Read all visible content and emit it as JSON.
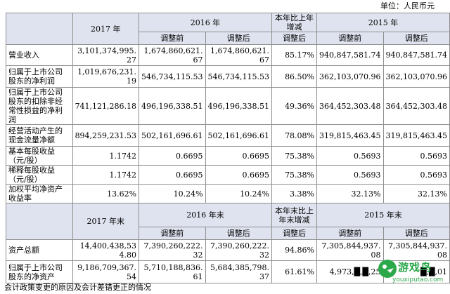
{
  "unit_label": "单位：人民币元",
  "header1": {
    "y2017": "2017 年",
    "y2016": "2016 年",
    "change": "本年比上年增减",
    "y2015": "2015 年",
    "before": "调整前",
    "after": "调整后"
  },
  "rows1": [
    {
      "label": "营业收入",
      "v2017": "3,101,374,995.27",
      "b2016": "1,674,860,621.67",
      "a2016": "1,674,860,621.67",
      "change": "85.17%",
      "b2015": "940,847,581.74",
      "a2015": "940,847,581.74"
    },
    {
      "label": "归属于上市公司股东的净利润",
      "v2017": "1,019,676,231.19",
      "b2016": "546,734,115.53",
      "a2016": "546,734,115.53",
      "change": "86.50%",
      "b2015": "362,103,070.96",
      "a2015": "362,103,070.96"
    },
    {
      "label": "归属于上市公司股东的扣除非经常性损益的净利润",
      "v2017": "741,121,286.18",
      "b2016": "496,196,338.51",
      "a2016": "496,196,338.51",
      "change": "49.36%",
      "b2015": "364,452,303.48",
      "a2015": "364,452,303.48"
    },
    {
      "label": "经营活动产生的现金流量净额",
      "v2017": "894,259,231.53",
      "b2016": "502,161,696.61",
      "a2016": "502,161,696.61",
      "change": "78.08%",
      "b2015": "319,815,463.45",
      "a2015": "319,815,463.45"
    },
    {
      "label": "基本每股收益（元/股）",
      "v2017": "1.1742",
      "b2016": "0.6695",
      "a2016": "0.6695",
      "change": "75.38%",
      "b2015": "0.5693",
      "a2015": "0.5693"
    },
    {
      "label": "稀释每股收益（元/股）",
      "v2017": "1.1742",
      "b2016": "0.6695",
      "a2016": "0.6695",
      "change": "75.38%",
      "b2015": "0.5693",
      "a2015": "0.5693"
    },
    {
      "label": "加权平均净资产收益率",
      "v2017": "13.62%",
      "b2016": "10.24%",
      "a2016": "10.24%",
      "change": "3.38%",
      "b2015": "32.13%",
      "a2015": "32.13%"
    }
  ],
  "header2": {
    "y2017": "2017 年末",
    "y2016": "2016 年末",
    "change": "本年末比上年末增减",
    "y2015": "2015 年末",
    "before": "调整前",
    "after": "调整后"
  },
  "rows2": [
    {
      "label": "资产总额",
      "v2017": "14,400,438,534.80",
      "b2016": "7,390,260,222.32",
      "a2016": "7,390,260,222.32",
      "change": "94.86%",
      "b2015": "7,305,844,937.08",
      "a2015": "7,305,844,937.08"
    },
    {
      "label": "归属于上市公司股东的净资产",
      "v2017": "9,186,709,367.54",
      "b2016": "5,710,188,836.61",
      "a2016": "5,684,385,798.37",
      "change": "61.61%",
      "b2015": "4,973,█,█,25",
      "a2015": "█,█,01"
    }
  ],
  "footer_text": "会计政策变更的原因及会计差错更正的情况",
  "watermark": {
    "title": "游戏鸟",
    "url": "youxiputao.com",
    "color": "#2aa84a"
  }
}
